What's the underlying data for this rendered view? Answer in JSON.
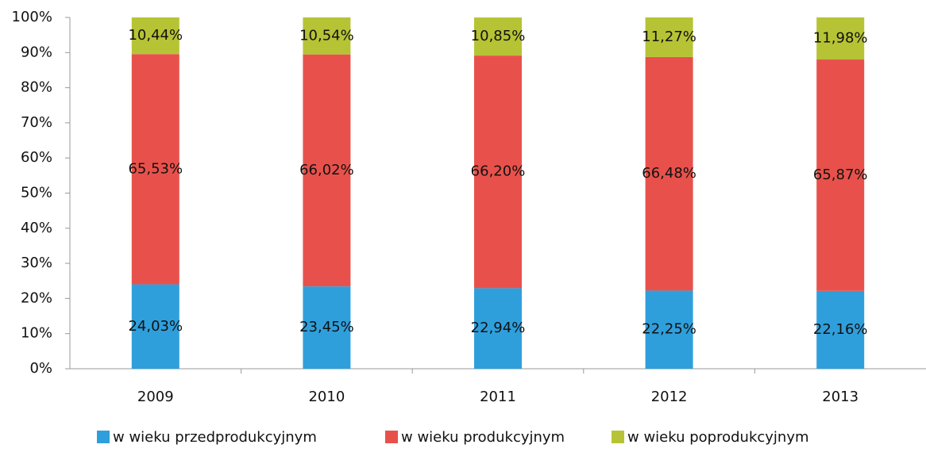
{
  "chart_data": {
    "type": "bar",
    "stacked": true,
    "categories": [
      "2009",
      "2010",
      "2011",
      "2012",
      "2013"
    ],
    "series": [
      {
        "name": "w wieku przedprodukcyjnym",
        "color": "#2f9fdc",
        "values": [
          24.03,
          23.45,
          22.94,
          22.25,
          22.16
        ],
        "value_labels": [
          "24,03%",
          "23,45%",
          "22,94%",
          "22,25%",
          "22,16%"
        ]
      },
      {
        "name": "w wieku produkcyjnym",
        "color": "#e8514b",
        "values": [
          65.53,
          66.02,
          66.2,
          66.48,
          65.87
        ],
        "value_labels": [
          "65,53%",
          "66,02%",
          "66,20%",
          "66,48%",
          "65,87%"
        ]
      },
      {
        "name": "w wieku poprodukcyjnym",
        "color": "#b6c335",
        "values": [
          10.44,
          10.54,
          10.85,
          11.27,
          11.98
        ],
        "value_labels": [
          "10,44%",
          "10,54%",
          "10,85%",
          "11,27%",
          "11,98%"
        ]
      }
    ],
    "ylim": [
      0,
      100
    ],
    "yticks": [
      {
        "value": 0,
        "label": "0%"
      },
      {
        "value": 10,
        "label": "10%"
      },
      {
        "value": 20,
        "label": "20%"
      },
      {
        "value": 30,
        "label": "30%"
      },
      {
        "value": 40,
        "label": "40%"
      },
      {
        "value": 50,
        "label": "50%"
      },
      {
        "value": 60,
        "label": "60%"
      },
      {
        "value": 70,
        "label": "70%"
      },
      {
        "value": 80,
        "label": "80%"
      },
      {
        "value": 90,
        "label": "90%"
      },
      {
        "value": 100,
        "label": "100%"
      }
    ],
    "grid": false,
    "legend": "bottom"
  }
}
